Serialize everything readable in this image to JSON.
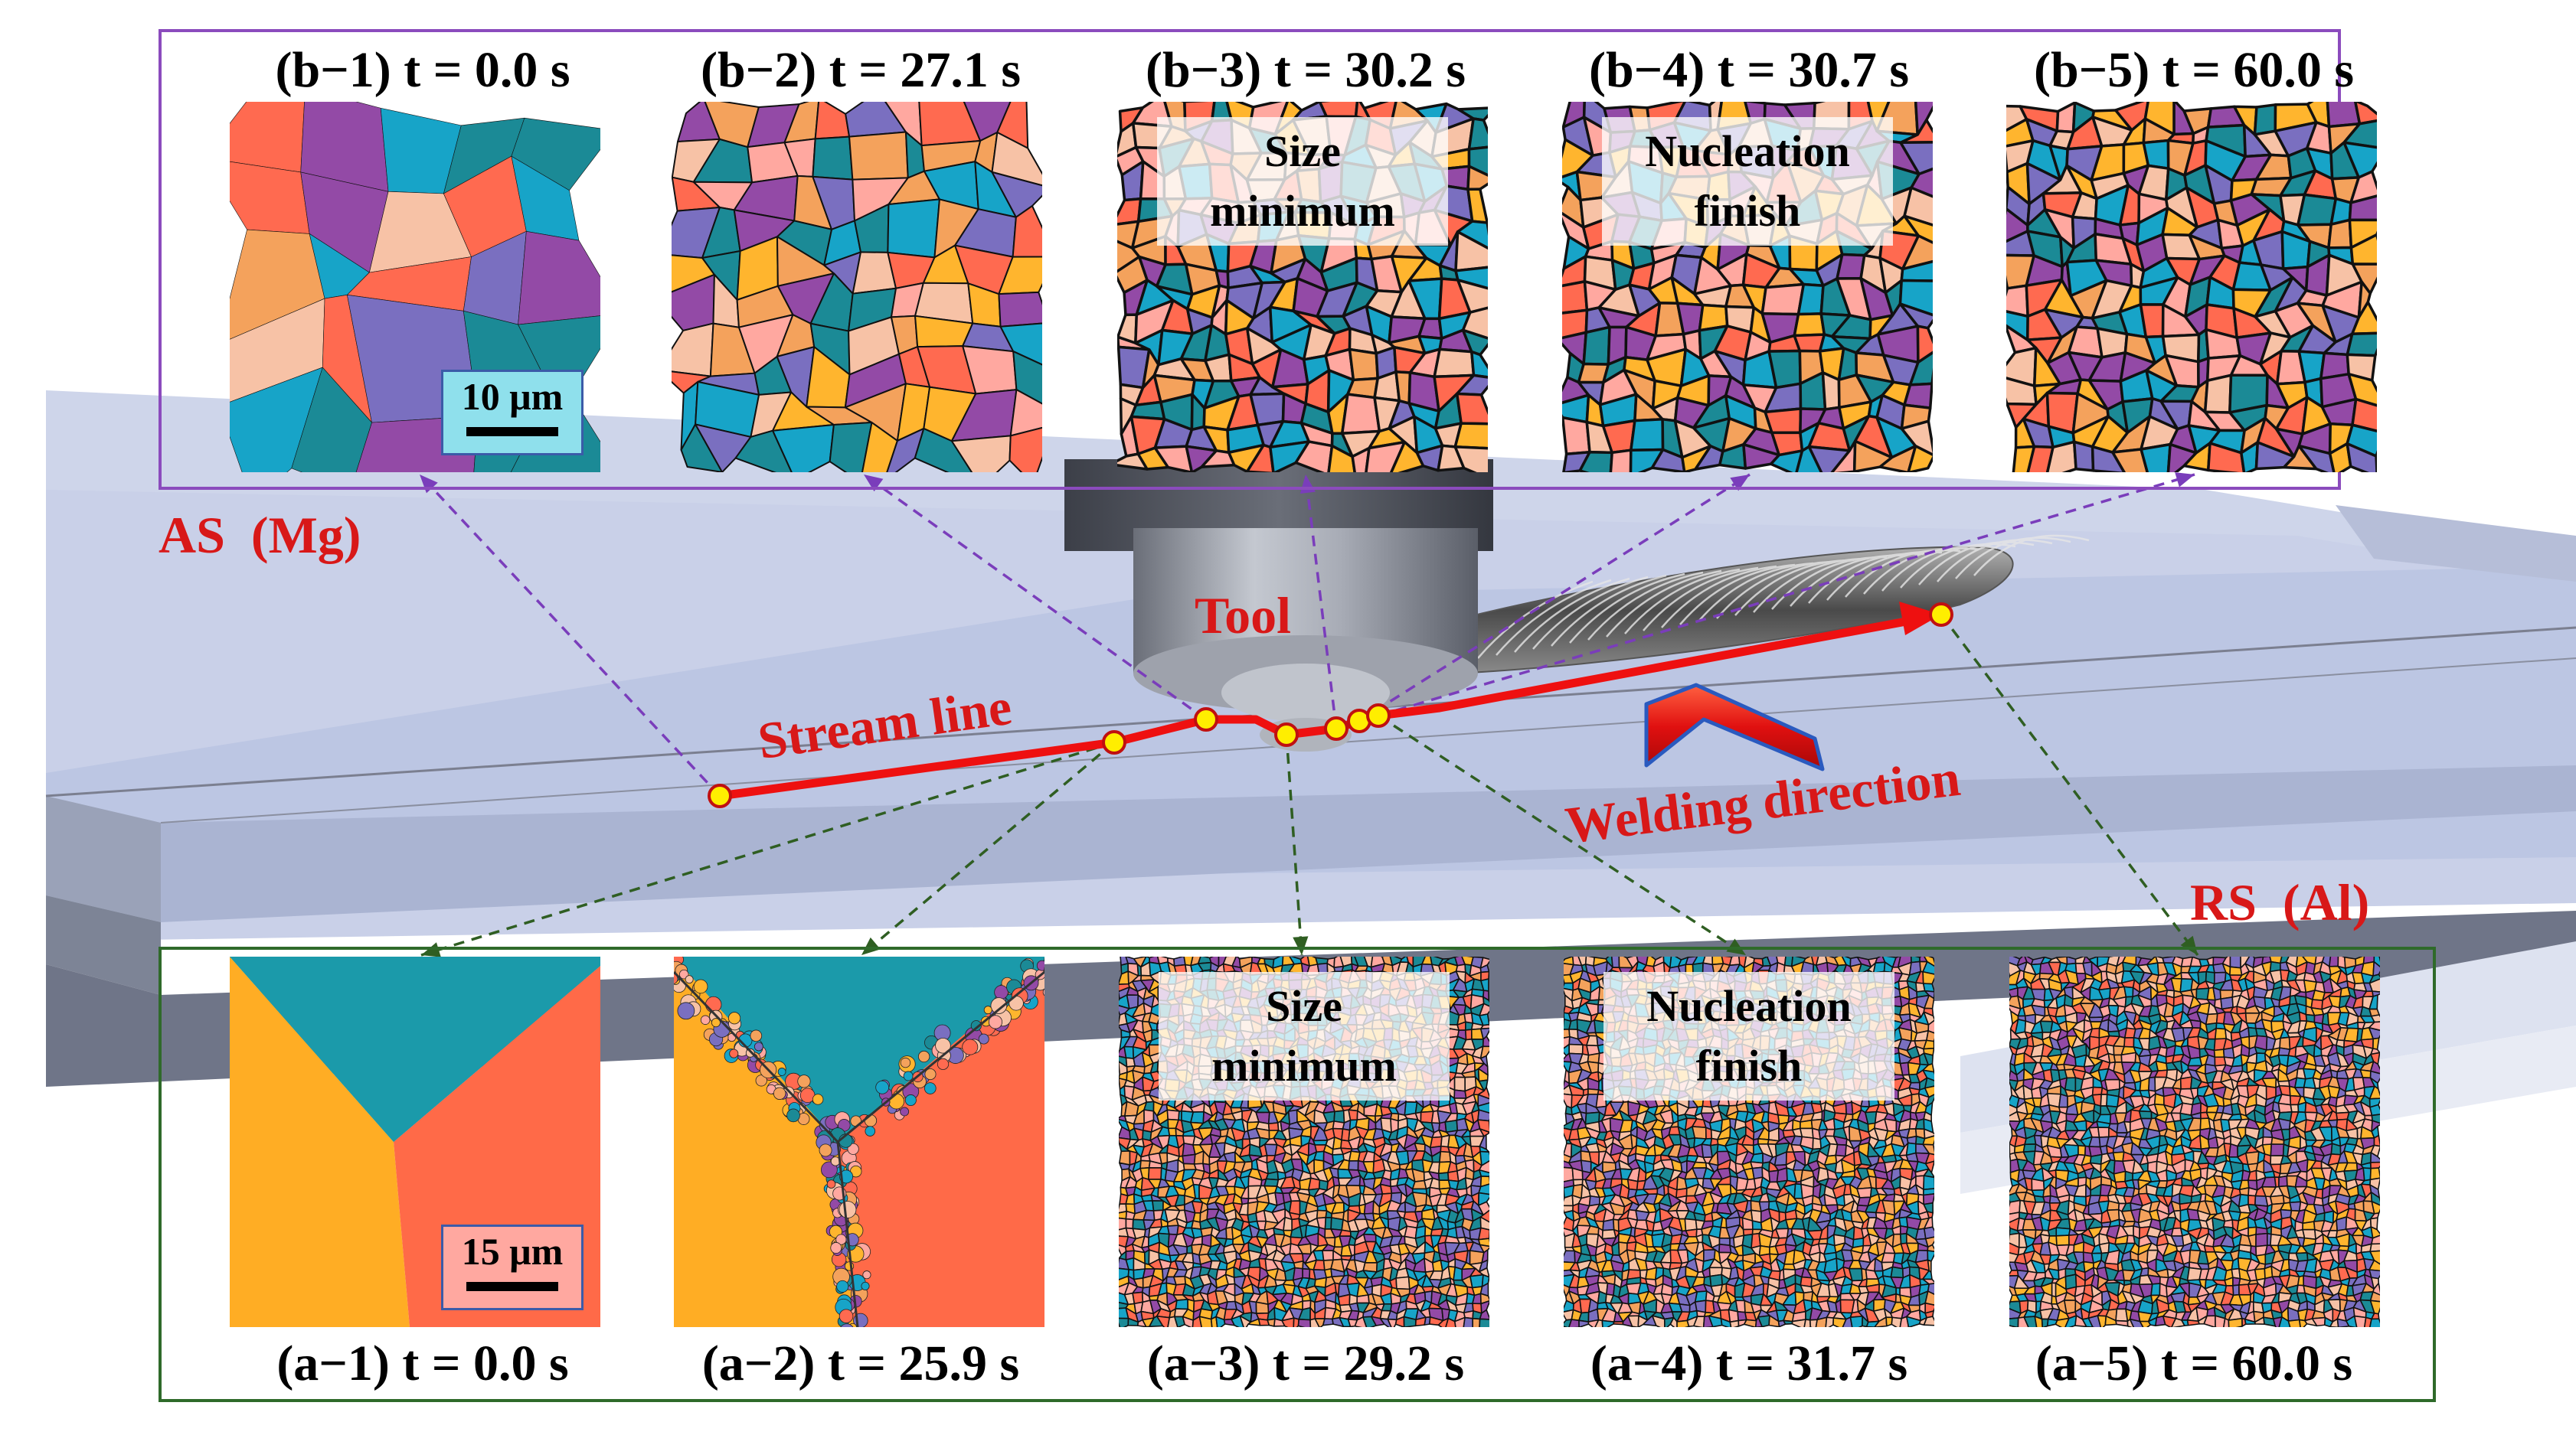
{
  "labels": {
    "as": "AS  (Mg)",
    "rs": "RS  (Al)",
    "tool": "Tool",
    "stream_line": "Stream line",
    "welding_direction": "Welding direction"
  },
  "colors": {
    "stream_line": "#ee1010",
    "as_leader": "#7a3dbb",
    "rs_leader": "#2f5e22",
    "point_fill": "#ffee00",
    "label_red": "#d81818",
    "grain_palette": [
      "#ff6a50",
      "#ffa8a0",
      "#f4a25c",
      "#ffb52e",
      "#17a4c8",
      "#1b8a96",
      "#934aa6",
      "#7a6fc0",
      "#f7c2a6"
    ]
  },
  "top_row": {
    "panels": [
      {
        "title": "(b−1) t = 0.0 s",
        "overlay": "",
        "scale": "10 μm",
        "grains": "coarse"
      },
      {
        "title": "(b−2) t = 27.1 s",
        "overlay": "",
        "scale": "",
        "grains": "medium"
      },
      {
        "title": "(b−3) t = 30.2 s",
        "overlay": "Size minimum",
        "scale": "",
        "grains": "fine"
      },
      {
        "title": "(b−4) t = 30.7 s",
        "overlay": "Nucleation finish",
        "scale": "",
        "grains": "fine"
      },
      {
        "title": "(b−5) t = 60.0 s",
        "overlay": "",
        "scale": "",
        "grains": "fine"
      }
    ]
  },
  "bottom_row": {
    "panels": [
      {
        "title": "(a−1) t = 0.0 s",
        "overlay": "",
        "scale": "15 μm",
        "grains": "triple-junction"
      },
      {
        "title": "(a−2) t = 25.9 s",
        "overlay": "",
        "scale": "",
        "grains": "boundary-nucleation"
      },
      {
        "title": "(a−3) t = 29.2 s",
        "overlay": "Size minimum",
        "scale": "",
        "grains": "ultrafine"
      },
      {
        "title": "(a−4) t = 31.7 s",
        "overlay": "Nucleation finish",
        "scale": "",
        "grains": "ultrafine"
      },
      {
        "title": "(a−5) t = 60.0 s",
        "overlay": "",
        "scale": "",
        "grains": "ultrafine"
      }
    ]
  }
}
